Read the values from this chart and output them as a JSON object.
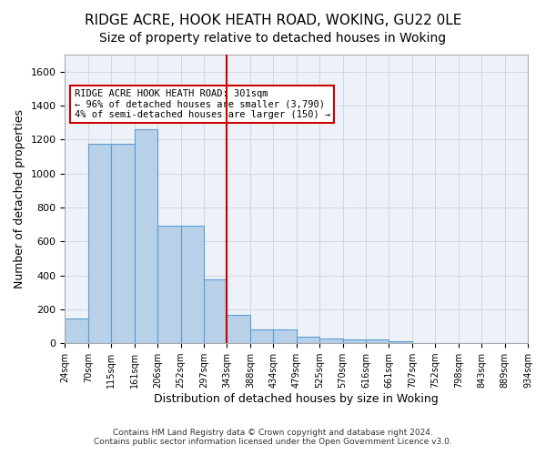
{
  "title1": "RIDGE ACRE, HOOK HEATH ROAD, WOKING, GU22 0LE",
  "title2": "Size of property relative to detached houses in Woking",
  "xlabel": "Distribution of detached houses by size in Woking",
  "ylabel": "Number of detached properties",
  "footer1": "Contains HM Land Registry data © Crown copyright and database right 2024.",
  "footer2": "Contains public sector information licensed under the Open Government Licence v3.0.",
  "bin_labels": [
    "24sqm",
    "70sqm",
    "115sqm",
    "161sqm",
    "206sqm",
    "252sqm",
    "297sqm",
    "343sqm",
    "388sqm",
    "434sqm",
    "479sqm",
    "525sqm",
    "570sqm",
    "616sqm",
    "661sqm",
    "707sqm",
    "752sqm",
    "798sqm",
    "843sqm",
    "889sqm",
    "934sqm"
  ],
  "bar_heights": [
    145,
    1175,
    1175,
    1260,
    690,
    690,
    375,
    165,
    80,
    80,
    38,
    30,
    20,
    20,
    12,
    0,
    0,
    0,
    0,
    0
  ],
  "bar_color": "#b8d0e8",
  "bar_edge_color": "#5a9fd4",
  "red_line_color": "#cc0000",
  "annotation_text": "RIDGE ACRE HOOK HEATH ROAD: 301sqm\n← 96% of detached houses are smaller (3,790)\n4% of semi-detached houses are larger (150) →",
  "annotation_box_color": "#cc0000",
  "ylim": [
    0,
    1700
  ],
  "yticks": [
    0,
    200,
    400,
    600,
    800,
    1000,
    1200,
    1400,
    1600
  ],
  "grid_color": "#d0d8e8",
  "background_color": "#eef2f8",
  "title1_fontsize": 11,
  "title2_fontsize": 10,
  "xlabel_fontsize": 9,
  "ylabel_fontsize": 9
}
